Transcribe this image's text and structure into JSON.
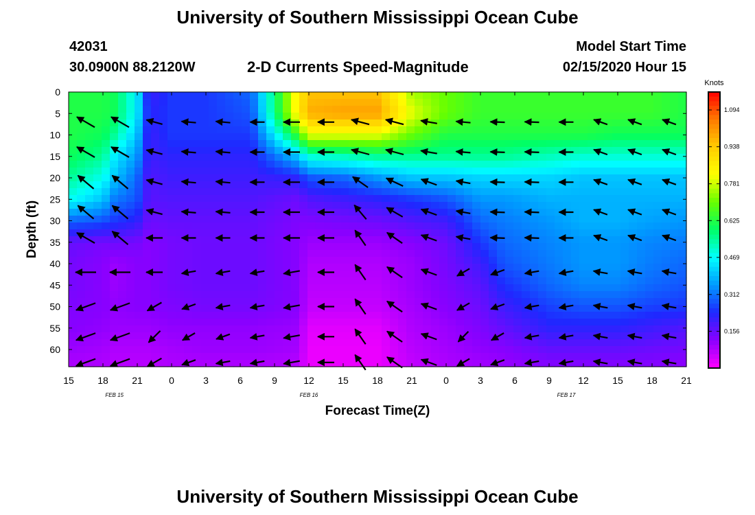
{
  "header": {
    "title": "University of Southern Mississippi Ocean Cube",
    "station_id": "42031",
    "coordinates": "30.0900N 88.2120W",
    "subtitle": "2-D Currents Speed-Magnitude",
    "model_start_label": "Model Start Time",
    "model_start_value": "02/15/2020 Hour 15"
  },
  "footer": {
    "title": "University of Southern Mississippi Ocean Cube"
  },
  "chart_data": {
    "type": "heatmap",
    "title": "2-D Currents Speed-Magnitude",
    "xlabel": "Forecast Time(Z)",
    "ylabel": "Depth (ft)",
    "x_hours_range": [
      0,
      54
    ],
    "x_tick_labels": [
      "15",
      "18",
      "21",
      "0",
      "3",
      "6",
      "9",
      "12",
      "15",
      "18",
      "21",
      "0",
      "3",
      "6",
      "9",
      "12",
      "15",
      "18",
      "21"
    ],
    "date_labels": [
      {
        "text": "FEB 15",
        "hour": 4
      },
      {
        "text": "FEB 16",
        "hour": 21
      },
      {
        "text": "FEB 17",
        "hour": 43.5
      }
    ],
    "y_range": [
      0,
      64
    ],
    "y_ticks": [
      0,
      5,
      10,
      15,
      20,
      25,
      30,
      35,
      40,
      45,
      50,
      55,
      60
    ],
    "colorbar": {
      "unit": "Knots",
      "range": [
        0,
        1.17
      ],
      "tick_values": [
        1.094,
        0.938,
        0.781,
        0.625,
        0.469,
        0.312,
        0.156
      ],
      "tick_labels": [
        "1.094",
        "0.938",
        "0.781",
        "0.625",
        "0.469",
        "0.312",
        "0.156"
      ],
      "colors": [
        "#ff00ff",
        "#8a00ff",
        "#1f28ff",
        "#0099ff",
        "#00ffff",
        "#00ff66",
        "#66ff00",
        "#ffff00",
        "#ffcc00",
        "#ff7a00",
        "#ff0000"
      ]
    },
    "speed_grid": {
      "hours": [
        0,
        3,
        4,
        6,
        7,
        9,
        12,
        16,
        20,
        21,
        24,
        27,
        30,
        33,
        36,
        38,
        42,
        45,
        48,
        51,
        54
      ],
      "depths": [
        0,
        5,
        10,
        15,
        20,
        25,
        30,
        35,
        40,
        45,
        50,
        55,
        60,
        64
      ],
      "knots": [
        [
          0.62,
          0.62,
          0.6,
          0.45,
          0.2,
          0.25,
          0.25,
          0.3,
          0.85,
          0.95,
          0.95,
          0.95,
          0.75,
          0.7,
          0.65,
          0.65,
          0.65,
          0.65,
          0.65,
          0.65,
          0.62
        ],
        [
          0.62,
          0.62,
          0.6,
          0.45,
          0.22,
          0.25,
          0.25,
          0.28,
          0.85,
          0.98,
          1.0,
          1.0,
          0.8,
          0.7,
          0.65,
          0.65,
          0.65,
          0.65,
          0.65,
          0.65,
          0.62
        ],
        [
          0.62,
          0.6,
          0.55,
          0.4,
          0.2,
          0.25,
          0.25,
          0.25,
          0.65,
          0.8,
          0.8,
          0.8,
          0.7,
          0.62,
          0.62,
          0.62,
          0.62,
          0.62,
          0.6,
          0.6,
          0.6
        ],
        [
          0.6,
          0.55,
          0.45,
          0.35,
          0.2,
          0.22,
          0.22,
          0.22,
          0.4,
          0.5,
          0.52,
          0.55,
          0.55,
          0.55,
          0.55,
          0.55,
          0.52,
          0.5,
          0.5,
          0.5,
          0.5
        ],
        [
          0.55,
          0.48,
          0.4,
          0.3,
          0.18,
          0.2,
          0.2,
          0.2,
          0.22,
          0.28,
          0.3,
          0.35,
          0.4,
          0.4,
          0.42,
          0.42,
          0.42,
          0.4,
          0.4,
          0.4,
          0.4
        ],
        [
          0.48,
          0.4,
          0.32,
          0.28,
          0.17,
          0.18,
          0.18,
          0.18,
          0.15,
          0.18,
          0.2,
          0.22,
          0.25,
          0.28,
          0.35,
          0.35,
          0.38,
          0.38,
          0.38,
          0.38,
          0.38
        ],
        [
          0.3,
          0.28,
          0.25,
          0.22,
          0.15,
          0.16,
          0.16,
          0.16,
          0.13,
          0.13,
          0.14,
          0.15,
          0.18,
          0.2,
          0.3,
          0.32,
          0.35,
          0.38,
          0.38,
          0.36,
          0.35
        ],
        [
          0.16,
          0.14,
          0.15,
          0.14,
          0.12,
          0.14,
          0.15,
          0.15,
          0.12,
          0.1,
          0.1,
          0.1,
          0.12,
          0.15,
          0.25,
          0.3,
          0.33,
          0.35,
          0.35,
          0.33,
          0.32
        ],
        [
          0.14,
          0.12,
          0.1,
          0.12,
          0.12,
          0.14,
          0.15,
          0.15,
          0.12,
          0.08,
          0.08,
          0.08,
          0.1,
          0.14,
          0.2,
          0.28,
          0.32,
          0.35,
          0.35,
          0.32,
          0.3
        ],
        [
          0.14,
          0.12,
          0.1,
          0.12,
          0.12,
          0.14,
          0.15,
          0.15,
          0.12,
          0.07,
          0.07,
          0.07,
          0.1,
          0.13,
          0.17,
          0.24,
          0.3,
          0.33,
          0.33,
          0.3,
          0.28
        ],
        [
          0.13,
          0.12,
          0.11,
          0.12,
          0.12,
          0.13,
          0.14,
          0.14,
          0.12,
          0.06,
          0.06,
          0.06,
          0.09,
          0.12,
          0.15,
          0.2,
          0.26,
          0.28,
          0.28,
          0.26,
          0.25
        ],
        [
          0.12,
          0.11,
          0.1,
          0.1,
          0.1,
          0.11,
          0.11,
          0.11,
          0.1,
          0.03,
          0.03,
          0.03,
          0.08,
          0.1,
          0.13,
          0.16,
          0.22,
          0.22,
          0.22,
          0.2,
          0.18
        ],
        [
          0.1,
          0.09,
          0.08,
          0.08,
          0.08,
          0.09,
          0.1,
          0.1,
          0.09,
          0.02,
          0.02,
          0.02,
          0.07,
          0.09,
          0.11,
          0.12,
          0.16,
          0.16,
          0.16,
          0.15,
          0.14
        ],
        [
          0.08,
          0.08,
          0.07,
          0.07,
          0.07,
          0.08,
          0.08,
          0.08,
          0.07,
          0.02,
          0.02,
          0.02,
          0.06,
          0.08,
          0.09,
          0.1,
          0.12,
          0.12,
          0.12,
          0.12,
          0.11
        ]
      ]
    },
    "vectors": {
      "hours": [
        1.5,
        4.5,
        7.5,
        10.5,
        13.5,
        16.5,
        19.5,
        22.5,
        25.5,
        28.5,
        31.5,
        34.5,
        37.5,
        40.5,
        43.5,
        46.5,
        49.5,
        52.5
      ],
      "depths": [
        7,
        14,
        21,
        28,
        34,
        42,
        50,
        57,
        63
      ],
      "direction_deg": [
        [
          150,
          150,
          165,
          175,
          175,
          180,
          180,
          180,
          165,
          165,
          170,
          175,
          178,
          178,
          180,
          160,
          160,
          160
        ],
        [
          150,
          150,
          165,
          175,
          175,
          180,
          180,
          180,
          165,
          165,
          170,
          175,
          178,
          178,
          180,
          160,
          160,
          160
        ],
        [
          140,
          140,
          165,
          175,
          175,
          180,
          180,
          180,
          145,
          155,
          160,
          170,
          178,
          178,
          180,
          160,
          160,
          160
        ],
        [
          140,
          140,
          165,
          175,
          175,
          180,
          180,
          180,
          130,
          150,
          160,
          170,
          178,
          178,
          180,
          160,
          160,
          160
        ],
        [
          150,
          140,
          180,
          180,
          180,
          180,
          180,
          180,
          125,
          145,
          160,
          170,
          178,
          178,
          180,
          160,
          160,
          160
        ],
        [
          180,
          180,
          180,
          190,
          190,
          190,
          190,
          180,
          125,
          145,
          160,
          210,
          200,
          190,
          190,
          170,
          170,
          170
        ],
        [
          200,
          200,
          210,
          200,
          190,
          190,
          190,
          180,
          125,
          145,
          160,
          210,
          200,
          190,
          190,
          170,
          170,
          170
        ],
        [
          200,
          200,
          225,
          210,
          200,
          190,
          190,
          180,
          125,
          145,
          160,
          225,
          210,
          190,
          190,
          170,
          170,
          170
        ],
        [
          200,
          200,
          210,
          200,
          190,
          190,
          190,
          180,
          125,
          145,
          160,
          210,
          200,
          190,
          190,
          170,
          170,
          170
        ]
      ],
      "length_relative": [
        [
          1.0,
          1.0,
          0.8,
          0.7,
          0.7,
          0.7,
          0.8,
          0.8,
          0.9,
          0.9,
          0.8,
          0.7,
          0.7,
          0.7,
          0.7,
          0.7,
          0.7,
          0.7
        ],
        [
          1.0,
          1.0,
          0.8,
          0.7,
          0.7,
          0.7,
          0.8,
          0.8,
          0.9,
          0.9,
          0.8,
          0.7,
          0.7,
          0.7,
          0.7,
          0.7,
          0.7,
          0.7
        ],
        [
          1.0,
          1.0,
          0.8,
          0.7,
          0.7,
          0.7,
          0.8,
          0.8,
          0.9,
          0.9,
          0.8,
          0.7,
          0.7,
          0.7,
          0.7,
          0.7,
          0.7,
          0.7
        ],
        [
          1.0,
          1.0,
          0.8,
          0.7,
          0.7,
          0.7,
          0.8,
          0.8,
          0.9,
          0.9,
          0.8,
          0.7,
          0.7,
          0.7,
          0.7,
          0.7,
          0.7,
          0.7
        ],
        [
          1.0,
          1.0,
          0.8,
          0.7,
          0.7,
          0.7,
          0.8,
          0.8,
          0.9,
          0.9,
          0.8,
          0.7,
          0.7,
          0.7,
          0.7,
          0.7,
          0.7,
          0.7
        ],
        [
          1.0,
          1.0,
          0.8,
          0.7,
          0.7,
          0.7,
          0.8,
          0.8,
          0.9,
          0.9,
          0.8,
          0.7,
          0.7,
          0.7,
          0.7,
          0.7,
          0.7,
          0.7
        ],
        [
          1.0,
          1.0,
          0.8,
          0.7,
          0.7,
          0.7,
          0.8,
          0.8,
          0.9,
          0.9,
          0.8,
          0.7,
          0.7,
          0.7,
          0.7,
          0.7,
          0.7,
          0.7
        ],
        [
          1.0,
          1.0,
          0.8,
          0.7,
          0.7,
          0.7,
          0.8,
          0.8,
          0.9,
          0.9,
          0.8,
          0.7,
          0.7,
          0.7,
          0.7,
          0.7,
          0.7,
          0.7
        ],
        [
          1.0,
          1.0,
          0.8,
          0.7,
          0.7,
          0.7,
          0.8,
          0.8,
          0.9,
          0.9,
          0.8,
          0.7,
          0.7,
          0.7,
          0.7,
          0.7,
          0.7,
          0.7
        ]
      ]
    }
  }
}
